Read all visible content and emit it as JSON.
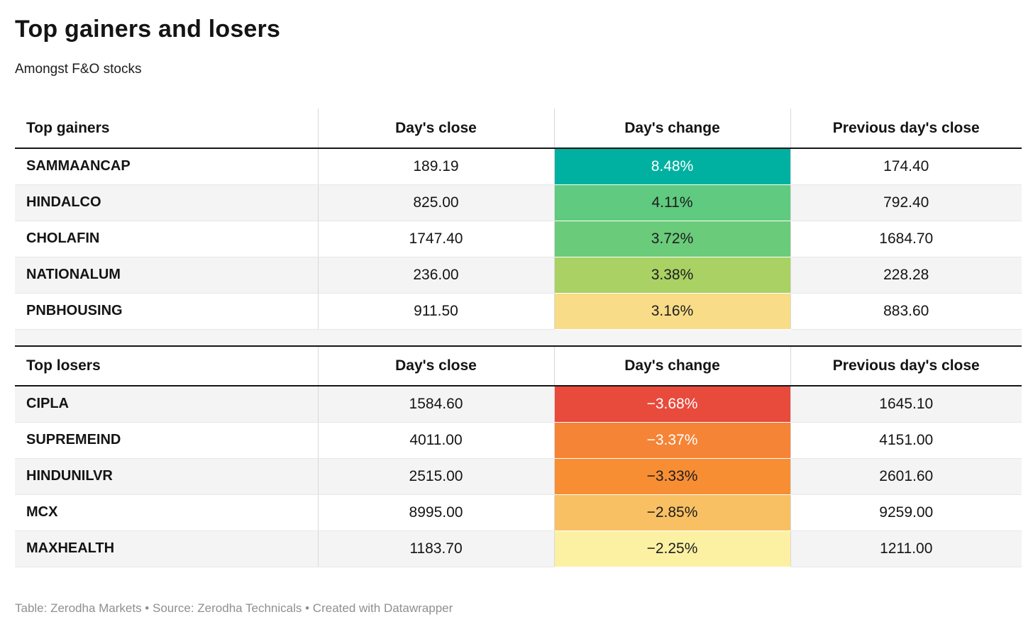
{
  "title": "Top gainers and losers",
  "subtitle": "Amongst F&O stocks",
  "footer": "Table: Zerodha Markets • Source: Zerodha Technicals • Created with Datawrapper",
  "accent_colors": {
    "strong_gain": "#00b1a1",
    "strong_loss": "#e84a3c",
    "header_rule": "#161616"
  },
  "chart_data": [
    {
      "type": "table",
      "title": "Top gainers",
      "columns": [
        "Top gainers",
        "Day's close",
        "Day's change",
        "Previous day's close"
      ],
      "rows": [
        {
          "stock": "SAMMAANCAP",
          "days_close": "189.19",
          "days_change": "8.48%",
          "prev_close": "174.40",
          "change_bg": "#00b1a1",
          "change_fg": "#ffffff"
        },
        {
          "stock": "HINDALCO",
          "days_close": "825.00",
          "days_change": "4.11%",
          "prev_close": "792.40",
          "change_bg": "#5fca80",
          "change_fg": "#1d1d1d"
        },
        {
          "stock": "CHOLAFIN",
          "days_close": "1747.40",
          "days_change": "3.72%",
          "prev_close": "1684.70",
          "change_bg": "#6acb7a",
          "change_fg": "#1d1d1d"
        },
        {
          "stock": "NATIONALUM",
          "days_close": "236.00",
          "days_change": "3.38%",
          "prev_close": "228.28",
          "change_bg": "#a9d163",
          "change_fg": "#1d1d1d"
        },
        {
          "stock": "PNBHOUSING",
          "days_close": "911.50",
          "days_change": "3.16%",
          "prev_close": "883.60",
          "change_bg": "#f8dc88",
          "change_fg": "#1d1d1d"
        }
      ]
    },
    {
      "type": "table",
      "title": "Top losers",
      "columns": [
        "Top losers",
        "Day's close",
        "Day's change",
        "Previous day's close"
      ],
      "rows": [
        {
          "stock": "CIPLA",
          "days_close": "1584.60",
          "days_change": "−3.68%",
          "prev_close": "1645.10",
          "change_bg": "#e84a3c",
          "change_fg": "#ffffff"
        },
        {
          "stock": "SUPREMEIND",
          "days_close": "4011.00",
          "days_change": "−3.37%",
          "prev_close": "4151.00",
          "change_bg": "#f58436",
          "change_fg": "#ffffff"
        },
        {
          "stock": "HINDUNILVR",
          "days_close": "2515.00",
          "days_change": "−3.33%",
          "prev_close": "2601.60",
          "change_bg": "#f78e34",
          "change_fg": "#1d1d1d"
        },
        {
          "stock": "MCX",
          "days_close": "8995.00",
          "days_change": "−2.85%",
          "prev_close": "9259.00",
          "change_bg": "#f9c063",
          "change_fg": "#1d1d1d"
        },
        {
          "stock": "MAXHEALTH",
          "days_close": "1183.70",
          "days_change": "−2.25%",
          "prev_close": "1211.00",
          "change_bg": "#fcf1a3",
          "change_fg": "#1d1d1d"
        }
      ]
    }
  ]
}
